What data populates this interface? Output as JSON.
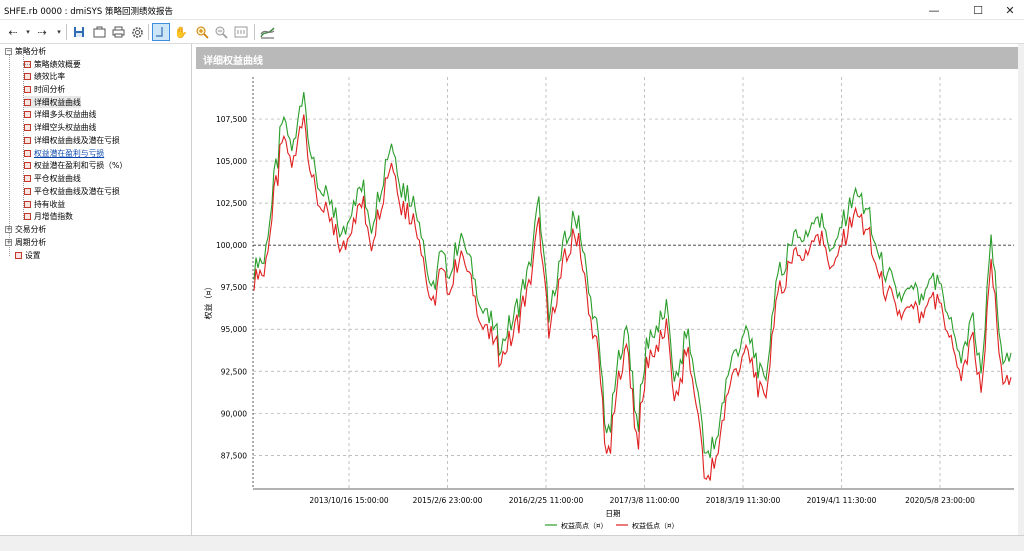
{
  "window": {
    "title": "SHFE.rb 0000 : dmiSYS 策略回测绩效报告",
    "minimize": "—",
    "maximize": "☐",
    "close": "✕"
  },
  "toolbar": {
    "icons": [
      "back-arrow-icon",
      "dropdown-icon",
      "forward-arrow-icon",
      "dropdown-icon",
      "save-icon",
      "export-icon",
      "print-icon",
      "settings-icon",
      "crosshair-icon",
      "hand-pan-icon",
      "zoom-in-icon",
      "zoom-out-icon",
      "zoom-reset-icon",
      "chart-style-icon"
    ]
  },
  "tree": {
    "root1": "策略分析",
    "items": [
      "策略绩效概要",
      "绩效比率",
      "时间分析",
      "详细权益曲线",
      "详细多头权益曲线",
      "详细空头权益曲线",
      "详细权益曲线及潜在亏损",
      "权益潜在盈利与亏损",
      "权益潜在盈利和亏损（%）",
      "平仓权益曲线",
      "平仓权益曲线及潜在亏损",
      "持有收益",
      "月增值指数"
    ],
    "root2": "交易分析",
    "root3": "周期分析",
    "settings": "设置",
    "selected_item": "详细权益曲线",
    "link_item": "权益潜在盈利与亏损"
  },
  "panel": {
    "title": "详细权益曲线"
  },
  "chart_data": {
    "type": "line",
    "title": "",
    "xlabel": "日期",
    "ylabel": "权益（¤）",
    "ylim": [
      85500,
      110000
    ],
    "y_ticks": [
      "87,500",
      "90,000",
      "92,500",
      "95,000",
      "97,500",
      "100,000",
      "102,500",
      "105,000",
      "107,500"
    ],
    "y_tick_values": [
      87500,
      90000,
      92500,
      95000,
      97500,
      100000,
      102500,
      105000,
      107500
    ],
    "x_ticks": [
      "2013/10/16 15:00:00",
      "2015/2/6 23:00:00",
      "2016/2/25 11:00:00",
      "2017/3/8 11:00:00",
      "2018/3/19 11:30:00",
      "2019/4/1 11:30:00",
      "2020/5/8 23:00:00"
    ],
    "grid": true,
    "legend": "bottom-center",
    "colors": {
      "high": "#2a9d2a",
      "low": "#e02020"
    },
    "series": [
      {
        "name": "权益高点（¤）",
        "values": [
          99000,
          98800,
          103500,
          107500,
          105500,
          109500,
          104500,
          103000,
          102000,
          100500,
          102500,
          103500,
          101000,
          104000,
          106500,
          103500,
          103000,
          101000,
          97000,
          99500,
          98500,
          100500,
          99000,
          96500,
          95500,
          94000,
          95000,
          96500,
          98500,
          102500,
          95500,
          99000,
          100500,
          102000,
          97500,
          94500,
          88000,
          93000,
          95000,
          89000,
          94500,
          95000,
          96000,
          91500,
          95000,
          92000,
          87500,
          88000,
          92000,
          93500,
          95000,
          93500,
          91500,
          97500,
          99000,
          101000,
          100000,
          102000,
          101000,
          99500,
          101500,
          103000,
          102500,
          100500,
          98500,
          97500,
          96500,
          97500,
          96500,
          98000,
          97500,
          95000,
          93000,
          96000,
          92500,
          100500,
          93500,
          93000
        ]
      },
      {
        "name": "权益低点（¤）",
        "values": [
          98600,
          98300,
          102800,
          106600,
          104800,
          108400,
          103700,
          102300,
          101200,
          99900,
          101700,
          102800,
          100200,
          103200,
          105600,
          102700,
          102200,
          100200,
          96400,
          98700,
          97800,
          99700,
          98200,
          95800,
          94800,
          93600,
          94300,
          95800,
          97700,
          101500,
          94800,
          98200,
          99700,
          101200,
          96500,
          93700,
          87000,
          92000,
          94200,
          88200,
          93600,
          94100,
          95100,
          90600,
          94200,
          91000,
          86200,
          87200,
          91200,
          92600,
          94100,
          92600,
          90700,
          96600,
          98200,
          100200,
          99100,
          101200,
          100200,
          98700,
          100600,
          102100,
          101500,
          99600,
          97600,
          96700,
          95700,
          96600,
          95700,
          97100,
          96600,
          94200,
          92200,
          95100,
          91600,
          99300,
          92600,
          91800
        ]
      }
    ]
  }
}
